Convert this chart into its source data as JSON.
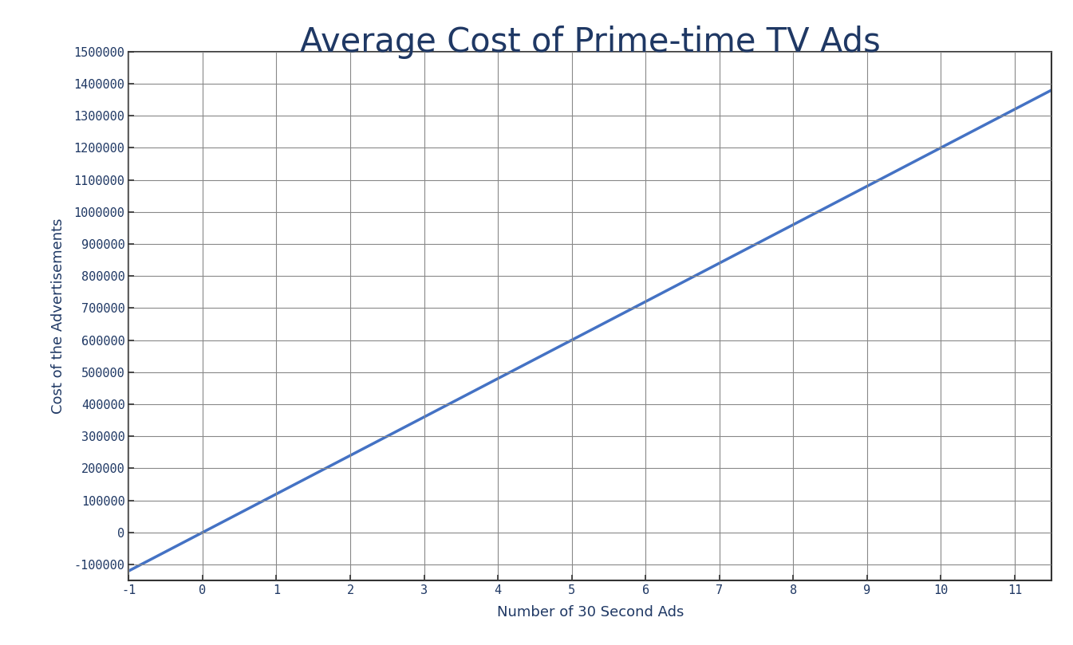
{
  "title": "Average Cost of Prime-time TV Ads",
  "xlabel": "Number of 30 Second Ads",
  "ylabel": "Cost of the Advertisements",
  "slope": 120000,
  "x_min": -1,
  "x_max": 11.5,
  "y_min": -150000,
  "y_max": 1500000,
  "x_ticks": [
    -1,
    0,
    1,
    2,
    3,
    4,
    5,
    6,
    7,
    8,
    9,
    10,
    11
  ],
  "y_ticks": [
    -100000,
    0,
    100000,
    200000,
    300000,
    400000,
    500000,
    600000,
    700000,
    800000,
    900000,
    1000000,
    1100000,
    1200000,
    1300000,
    1400000,
    1500000
  ],
  "line_color": "#4472C4",
  "line_width": 2.5,
  "background_color": "#FFFFFF",
  "grid_color": "#888888",
  "title_color": "#1F3864",
  "label_color": "#1F3864",
  "tick_color": "#1F3864",
  "spine_color": "#333333",
  "title_fontsize": 30,
  "axis_label_fontsize": 13,
  "tick_label_fontsize": 11,
  "title_font": "DejaVu Sans",
  "tick_font": "DejaVu Sans Mono"
}
